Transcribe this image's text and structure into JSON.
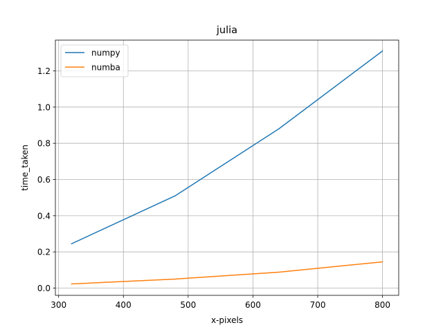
{
  "chart_data": {
    "type": "line",
    "title": "julia",
    "xlabel": "x-pixels",
    "ylabel": "time_taken",
    "xlim": [
      295,
      825
    ],
    "ylim": [
      -0.04,
      1.37
    ],
    "xticks": [
      300,
      400,
      500,
      600,
      700,
      800
    ],
    "xtick_labels": [
      "300",
      "400",
      "500",
      "600",
      "700",
      "800"
    ],
    "yticks": [
      0.0,
      0.2,
      0.4,
      0.6,
      0.8,
      1.0,
      1.2
    ],
    "ytick_labels": [
      "0.0",
      "0.2",
      "0.4",
      "0.6",
      "0.8",
      "1.0",
      "1.2"
    ],
    "grid": true,
    "legend_position": "upper-left",
    "x": [
      320,
      480,
      640,
      800
    ],
    "series": [
      {
        "name": "numpy",
        "color": "#1f77b4",
        "values": [
          0.245,
          0.51,
          0.88,
          1.31
        ]
      },
      {
        "name": "numba",
        "color": "#ff7f0e",
        "values": [
          0.023,
          0.05,
          0.088,
          0.145
        ]
      }
    ]
  }
}
